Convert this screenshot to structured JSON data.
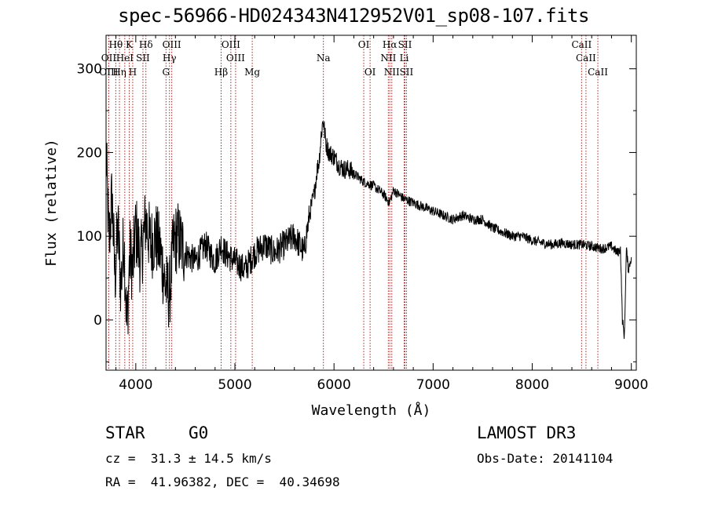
{
  "chart_data": {
    "type": "line",
    "title": "spec-56966-HD024343N412952V01_sp08-107.fits",
    "xlabel": "Wavelength (Å)",
    "ylabel": "Flux (relative)",
    "xlim": [
      3700,
      9050
    ],
    "ylim": [
      -60,
      340
    ],
    "xticks": [
      4000,
      5000,
      6000,
      7000,
      8000,
      9000
    ],
    "yticks": [
      0,
      100,
      200,
      300
    ],
    "grid": false,
    "series": [
      {
        "name": "spectrum",
        "x": [
          3700,
          3730,
          3760,
          3790,
          3820,
          3850,
          3880,
          3910,
          3940,
          3970,
          4000,
          4050,
          4100,
          4150,
          4200,
          4250,
          4300,
          4340,
          4380,
          4420,
          4500,
          4600,
          4700,
          4800,
          4861,
          4900,
          5000,
          5100,
          5200,
          5300,
          5400,
          5500,
          5600,
          5700,
          5720,
          5760,
          5800,
          5830,
          5850,
          5870,
          5890,
          5920,
          5950,
          6000,
          6050,
          6100,
          6150,
          6200,
          6250,
          6300,
          6400,
          6500,
          6560,
          6600,
          6700,
          6800,
          6900,
          7000,
          7100,
          7200,
          7300,
          7400,
          7500,
          7600,
          7700,
          7800,
          7900,
          8000,
          8100,
          8200,
          8300,
          8400,
          8500,
          8600,
          8700,
          8800,
          8860,
          8890,
          8910,
          8930,
          8950,
          8970,
          9000
        ],
        "y": [
          200,
          90,
          150,
          50,
          110,
          40,
          100,
          -10,
          80,
          60,
          110,
          70,
          120,
          90,
          100,
          80,
          40,
          30,
          90,
          100,
          80,
          70,
          90,
          70,
          90,
          80,
          70,
          60,
          80,
          90,
          80,
          90,
          100,
          80,
          100,
          130,
          150,
          180,
          190,
          220,
          240,
          210,
          200,
          195,
          185,
          180,
          180,
          175,
          170,
          165,
          160,
          150,
          140,
          155,
          145,
          140,
          135,
          130,
          125,
          120,
          125,
          120,
          120,
          110,
          105,
          100,
          100,
          95,
          92,
          90,
          92,
          90,
          90,
          88,
          85,
          88,
          80,
          85,
          0,
          -20,
          85,
          60,
          75
        ]
      }
    ],
    "spectral_lines": [
      {
        "label": "Hθ",
        "wavelength": 3798,
        "row": 1
      },
      {
        "label": "OII",
        "wavelength": 3727,
        "row": 2
      },
      {
        "label": "OIII",
        "wavelength": 3727,
        "row": 3
      },
      {
        "label": "Hη",
        "wavelength": 3835,
        "row": 3
      },
      {
        "label": "K",
        "wavelength": 3934,
        "row": 1
      },
      {
        "label": "HeI",
        "wavelength": 3889,
        "row": 2
      },
      {
        "label": "SII",
        "wavelength": 4072,
        "row": 2
      },
      {
        "label": "H",
        "wavelength": 3969,
        "row": 3
      },
      {
        "label": "Hδ",
        "wavelength": 4102,
        "row": 1
      },
      {
        "label": "OIII",
        "wavelength": 4363,
        "row": 1
      },
      {
        "label": "Hγ",
        "wavelength": 4340,
        "row": 2
      },
      {
        "label": "G",
        "wavelength": 4305,
        "row": 3
      },
      {
        "label": "OIII",
        "wavelength": 4959,
        "row": 1
      },
      {
        "label": "OIII",
        "wavelength": 5007,
        "row": 2
      },
      {
        "label": "Hβ",
        "wavelength": 4861,
        "row": 3
      },
      {
        "label": "Mg",
        "wavelength": 5175,
        "row": 3
      },
      {
        "label": "Na",
        "wavelength": 5893,
        "row": 2
      },
      {
        "label": "OI",
        "wavelength": 6300,
        "row": 1
      },
      {
        "label": "OI",
        "wavelength": 6364,
        "row": 3
      },
      {
        "label": "Hα",
        "wavelength": 6563,
        "row": 1
      },
      {
        "label": "SII",
        "wavelength": 6716,
        "row": 1
      },
      {
        "label": "NII",
        "wavelength": 6548,
        "row": 2
      },
      {
        "label": "Li",
        "wavelength": 6708,
        "row": 2
      },
      {
        "label": "NII",
        "wavelength": 6583,
        "row": 3
      },
      {
        "label": "SII",
        "wavelength": 6731,
        "row": 3
      },
      {
        "label": "CaII",
        "wavelength": 8498,
        "row": 1
      },
      {
        "label": "CaII",
        "wavelength": 8542,
        "row": 2
      },
      {
        "label": "CaII",
        "wavelength": 8662,
        "row": 3
      }
    ]
  },
  "info": {
    "object_class": "STAR",
    "subclass": "G0",
    "survey": "LAMOST DR3",
    "redshift": "cz =  31.3 ± 14.5 km/s",
    "obs_date": "Obs-Date: 20141104",
    "coords": "RA =  41.96382, DEC =  40.34698"
  }
}
